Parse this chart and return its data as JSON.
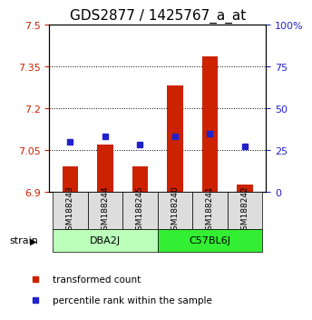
{
  "title": "GDS2877 / 1425767_a_at",
  "samples": [
    "GSM188243",
    "GSM188244",
    "GSM188245",
    "GSM188240",
    "GSM188241",
    "GSM188242"
  ],
  "bar_bottom": 6.9,
  "red_values": [
    6.99,
    7.07,
    6.99,
    7.28,
    7.385,
    6.925
  ],
  "blue_values": [
    30,
    33,
    28,
    33,
    35,
    27
  ],
  "ylim_left": [
    6.9,
    7.5
  ],
  "ylim_right": [
    0,
    100
  ],
  "yticks_left": [
    6.9,
    7.05,
    7.2,
    7.35,
    7.5
  ],
  "ytick_labels_left": [
    "6.9",
    "7.05",
    "7.2",
    "7.35",
    "7.5"
  ],
  "yticks_right": [
    0,
    25,
    50,
    75,
    100
  ],
  "ytick_labels_right": [
    "0",
    "25",
    "50",
    "75",
    "100%"
  ],
  "bar_color": "#cc2200",
  "dot_color": "#2222cc",
  "grid_ticks": [
    7.05,
    7.2,
    7.35
  ],
  "title_fontsize": 11,
  "tick_fontsize": 8,
  "legend_labels": [
    "transformed count",
    "percentile rank within the sample"
  ],
  "group_info": [
    {
      "name": "DBA2J",
      "start": 0,
      "end": 2,
      "color": "#bbffbb"
    },
    {
      "name": "C57BL6J",
      "start": 3,
      "end": 5,
      "color": "#33ee33"
    }
  ]
}
